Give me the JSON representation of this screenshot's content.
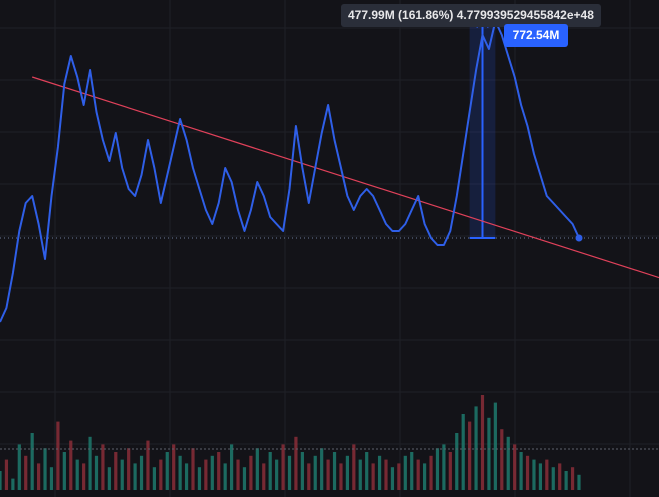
{
  "measure_label": "477.99M (161.86%) 4.779939529455842e+48",
  "price_label": "772.54M",
  "colors": {
    "background": "#131318",
    "grid": "#1f2027",
    "price_line": "#2f5fe8",
    "trend_line": "#e0415a",
    "measure_fill": "#2962ff",
    "volume_up": "#1f7a6d",
    "volume_down": "#8a2e38"
  },
  "chart_data": {
    "type": "line",
    "series": [
      {
        "values": [
          340,
          360,
          410,
          470,
          510,
          520,
          480,
          430,
          520,
          590,
          680,
          720,
          690,
          650,
          700,
          640,
          600,
          570,
          610,
          560,
          530,
          520,
          550,
          600,
          560,
          510,
          550,
          590,
          630,
          600,
          560,
          530,
          500,
          480,
          510,
          560,
          540,
          500,
          470,
          500,
          540,
          520,
          490,
          480,
          470,
          530,
          620,
          560,
          510,
          560,
          610,
          650,
          600,
          560,
          520,
          500,
          520,
          530,
          520,
          500,
          480,
          470,
          470,
          480,
          500,
          520,
          480,
          460,
          450,
          450,
          470,
          520,
          580,
          640,
          700,
          750,
          730,
          770,
          750,
          720,
          690,
          650,
          620,
          580,
          550,
          520,
          510,
          500,
          490,
          480,
          460
        ]
      }
    ],
    "volume": [
      5,
      8,
      3,
      12,
      9,
      15,
      7,
      11,
      6,
      18,
      10,
      13,
      8,
      7,
      14,
      9,
      12,
      6,
      10,
      8,
      11,
      7,
      9,
      13,
      6,
      8,
      10,
      12,
      9,
      7,
      11,
      6,
      8,
      9,
      10,
      7,
      12,
      8,
      6,
      9,
      11,
      7,
      10,
      8,
      12,
      9,
      14,
      10,
      7,
      9,
      11,
      8,
      10,
      7,
      9,
      12,
      8,
      10,
      7,
      9,
      8,
      6,
      7,
      9,
      10,
      8,
      7,
      9,
      11,
      12,
      10,
      15,
      20,
      18,
      22,
      25,
      19,
      23,
      16,
      14,
      12,
      10,
      9,
      8,
      7,
      8,
      6,
      7,
      5,
      6,
      4
    ],
    "volume_up": [
      true,
      false,
      true,
      true,
      false,
      true,
      false,
      true,
      true,
      false,
      true,
      false,
      true,
      false,
      true,
      true,
      false,
      true,
      false,
      true,
      false,
      true,
      true,
      false,
      true,
      false,
      true,
      false,
      true,
      true,
      false,
      true,
      false,
      true,
      false,
      true,
      true,
      false,
      true,
      false,
      true,
      false,
      true,
      true,
      false,
      true,
      false,
      true,
      false,
      true,
      true,
      false,
      true,
      false,
      true,
      false,
      true,
      true,
      false,
      true,
      false,
      true,
      false,
      true,
      true,
      false,
      true,
      false,
      true,
      true,
      false,
      true,
      true,
      false,
      true,
      false,
      true,
      true,
      false,
      true,
      false,
      true,
      false,
      true,
      true,
      false,
      true,
      false,
      true,
      false,
      true
    ],
    "ylim": [
      200,
      800
    ],
    "trend": {
      "from": [
        5,
        690
      ],
      "to": [
        90,
        440
      ]
    },
    "measure": {
      "from": 73,
      "to": 77,
      "low": 460,
      "high": 772.54
    },
    "last_value": 460
  }
}
